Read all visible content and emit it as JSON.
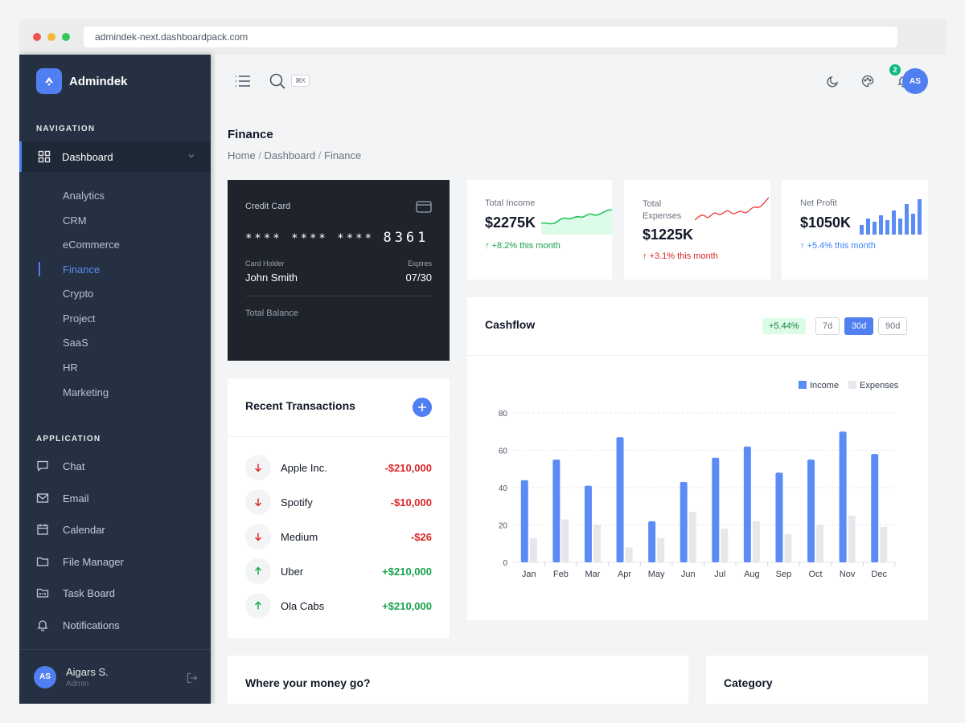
{
  "browser": {
    "url": "admindek-next.dashboardpack.com"
  },
  "sidebar": {
    "brand": "Admindek",
    "nav_label": "NAVIGATION",
    "dashboard_label": "Dashboard",
    "dashboard_items": [
      "Analytics",
      "CRM",
      "eCommerce",
      "Finance",
      "Crypto",
      "Project",
      "SaaS",
      "HR",
      "Marketing"
    ],
    "active_item": "Finance",
    "app_label": "APPLICATION",
    "app_items": [
      {
        "label": "Chat",
        "icon": "chat-icon"
      },
      {
        "label": "Email",
        "icon": "mail-icon"
      },
      {
        "label": "Calendar",
        "icon": "calendar-icon"
      },
      {
        "label": "File Manager",
        "icon": "folder-icon"
      },
      {
        "label": "Task Board",
        "icon": "kanban-icon"
      },
      {
        "label": "Notifications",
        "icon": "bell-icon"
      }
    ],
    "user": {
      "initials": "AS",
      "name": "Aigars S.",
      "role": "Admin"
    }
  },
  "topbar": {
    "search_shortcut": "⌘K",
    "notification_count": "2",
    "avatar_initials": "AS"
  },
  "page": {
    "title": "Finance",
    "breadcrumb": [
      "Home",
      "Dashboard",
      "Finance"
    ]
  },
  "credit_card": {
    "label": "Credit Card",
    "masked_groups": "**** **** ****",
    "last_digits": "8361",
    "holder_label": "Card Holder",
    "holder_name": "John Smith",
    "expires_label": "Expires",
    "expires": "07/30",
    "balance_label": "Total Balance"
  },
  "stats": [
    {
      "label": "Total Income",
      "value": "$2275K",
      "change": "+8.2% this month",
      "trend": "up",
      "color": "#16a34a"
    },
    {
      "label": "Total Expenses",
      "value": "$1225K",
      "change": "+3.1% this month",
      "trend": "up",
      "color": "#dc2626"
    },
    {
      "label": "Net Profit",
      "value": "$1050K",
      "change": "+5.4% this month",
      "trend": "up",
      "color": "#3b82f6"
    }
  ],
  "transactions": {
    "title": "Recent Transactions",
    "items": [
      {
        "name": "Apple Inc.",
        "amount": "-$210,000",
        "direction": "down"
      },
      {
        "name": "Spotify",
        "amount": "-$10,000",
        "direction": "down"
      },
      {
        "name": "Medium",
        "amount": "-$26",
        "direction": "down"
      },
      {
        "name": "Uber",
        "amount": "+$210,000",
        "direction": "up"
      },
      {
        "name": "Ola Cabs",
        "amount": "+$210,000",
        "direction": "up"
      }
    ]
  },
  "cashflow": {
    "title": "Cashflow",
    "change": "+5.44%",
    "ranges": [
      "7d",
      "30d",
      "90d"
    ],
    "active_range": "30d"
  },
  "chart_data": {
    "type": "bar",
    "categories": [
      "Jan",
      "Feb",
      "Mar",
      "Apr",
      "May",
      "Jun",
      "Jul",
      "Aug",
      "Sep",
      "Oct",
      "Nov",
      "Dec"
    ],
    "series": [
      {
        "name": "Income",
        "values": [
          44,
          55,
          41,
          67,
          22,
          43,
          56,
          62,
          48,
          55,
          70,
          58
        ],
        "color": "#5b8cf5"
      },
      {
        "name": "Expenses",
        "values": [
          13,
          23,
          20,
          8,
          13,
          27,
          18,
          22,
          15,
          20,
          25,
          19
        ],
        "color": "#e5e7eb"
      }
    ],
    "yticks": [
      0,
      20,
      40,
      60,
      80
    ],
    "ylim": [
      0,
      80
    ],
    "legend_position": "top-right",
    "grid": true
  },
  "bottom": {
    "money_title": "Where your money go?",
    "category_title": "Category"
  },
  "colors": {
    "accent": "#4f7ff0",
    "sidebar": "#253142",
    "card": "#1f242c"
  }
}
